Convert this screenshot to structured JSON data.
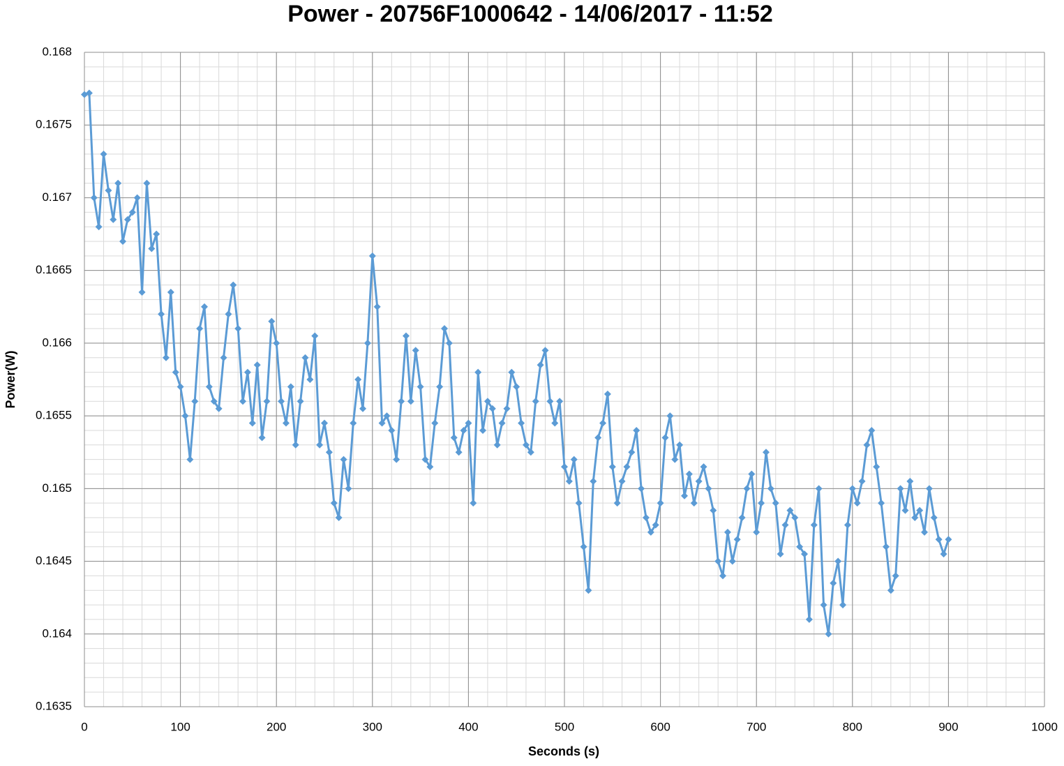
{
  "chart_data": {
    "type": "line",
    "title": "Power - 20756F1000642 - 14/06/2017 - 11:52",
    "x_label": "Seconds (s)",
    "y_label": "Power(W)",
    "xlim": [
      0,
      1000
    ],
    "xticks": [
      0,
      100,
      200,
      300,
      400,
      500,
      600,
      700,
      800,
      900,
      1000
    ],
    "ylim": [
      0.1635,
      0.168
    ],
    "yticks": [
      0.1635,
      0.164,
      0.1645,
      0.165,
      0.1655,
      0.166,
      0.1665,
      0.167,
      0.1675,
      0.168
    ],
    "grid": true,
    "xminor": 20,
    "yminor": 0.0001,
    "series": [
      {
        "name": "Power",
        "color": "#5b9bd5",
        "marker": "diamond",
        "x": [
          0,
          5,
          10,
          15,
          20,
          25,
          30,
          35,
          40,
          45,
          50,
          55,
          60,
          65,
          70,
          75,
          80,
          85,
          90,
          95,
          100,
          105,
          110,
          115,
          120,
          125,
          130,
          135,
          140,
          145,
          150,
          155,
          160,
          165,
          170,
          175,
          180,
          185,
          190,
          195,
          200,
          205,
          210,
          215,
          220,
          225,
          230,
          235,
          240,
          245,
          250,
          255,
          260,
          265,
          270,
          275,
          280,
          285,
          290,
          295,
          300,
          305,
          310,
          315,
          320,
          325,
          330,
          335,
          340,
          345,
          350,
          355,
          360,
          365,
          370,
          375,
          380,
          385,
          390,
          395,
          400,
          405,
          410,
          415,
          420,
          425,
          430,
          435,
          440,
          445,
          450,
          455,
          460,
          465,
          470,
          475,
          480,
          485,
          490,
          495,
          500,
          505,
          510,
          515,
          520,
          525,
          530,
          535,
          540,
          545,
          550,
          555,
          560,
          565,
          570,
          575,
          580,
          585,
          590,
          595,
          600,
          605,
          610,
          615,
          620,
          625,
          630,
          635,
          640,
          645,
          650,
          655,
          660,
          665,
          670,
          675,
          680,
          685,
          690,
          695,
          700,
          705,
          710,
          715,
          720,
          725,
          730,
          735,
          740,
          745,
          750,
          755,
          760,
          765,
          770,
          775,
          780,
          785,
          790,
          795,
          800,
          805,
          810,
          815,
          820,
          825,
          830,
          835,
          840,
          845,
          850,
          855,
          860,
          865,
          870,
          875,
          880,
          885,
          890,
          895,
          900
        ],
        "values": [
          0.16771,
          0.16772,
          0.167,
          0.1668,
          0.1673,
          0.16705,
          0.16685,
          0.1671,
          0.1667,
          0.16685,
          0.1669,
          0.167,
          0.16635,
          0.1671,
          0.16665,
          0.16675,
          0.1662,
          0.1659,
          0.16635,
          0.1658,
          0.1657,
          0.1655,
          0.1652,
          0.1656,
          0.1661,
          0.16625,
          0.1657,
          0.1656,
          0.16555,
          0.1659,
          0.1662,
          0.1664,
          0.1661,
          0.1656,
          0.1658,
          0.16545,
          0.16585,
          0.16535,
          0.1656,
          0.16615,
          0.166,
          0.1656,
          0.16545,
          0.1657,
          0.1653,
          0.1656,
          0.1659,
          0.16575,
          0.16605,
          0.1653,
          0.16545,
          0.16525,
          0.1649,
          0.1648,
          0.1652,
          0.165,
          0.16545,
          0.16575,
          0.16555,
          0.166,
          0.1666,
          0.16625,
          0.16545,
          0.1655,
          0.1654,
          0.1652,
          0.1656,
          0.16605,
          0.1656,
          0.16595,
          0.1657,
          0.1652,
          0.16515,
          0.16545,
          0.1657,
          0.1661,
          0.166,
          0.16535,
          0.16525,
          0.1654,
          0.16545,
          0.1649,
          0.1658,
          0.1654,
          0.1656,
          0.16555,
          0.1653,
          0.16545,
          0.16555,
          0.1658,
          0.1657,
          0.16545,
          0.1653,
          0.16525,
          0.1656,
          0.16585,
          0.16595,
          0.1656,
          0.16545,
          0.1656,
          0.16515,
          0.16505,
          0.1652,
          0.1649,
          0.1646,
          0.1643,
          0.16505,
          0.16535,
          0.16545,
          0.16565,
          0.16515,
          0.1649,
          0.16505,
          0.16515,
          0.16525,
          0.1654,
          0.165,
          0.1648,
          0.1647,
          0.16475,
          0.1649,
          0.16535,
          0.1655,
          0.1652,
          0.1653,
          0.16495,
          0.1651,
          0.1649,
          0.16505,
          0.16515,
          0.165,
          0.16485,
          0.1645,
          0.1644,
          0.1647,
          0.1645,
          0.16465,
          0.1648,
          0.165,
          0.1651,
          0.1647,
          0.1649,
          0.16525,
          0.165,
          0.1649,
          0.16455,
          0.16475,
          0.16485,
          0.1648,
          0.1646,
          0.16455,
          0.1641,
          0.16475,
          0.165,
          0.1642,
          0.164,
          0.16435,
          0.1645,
          0.1642,
          0.16475,
          0.165,
          0.1649,
          0.16505,
          0.1653,
          0.1654,
          0.16515,
          0.1649,
          0.1646,
          0.1643,
          0.1644,
          0.165,
          0.16485,
          0.16505,
          0.1648,
          0.16485,
          0.1647,
          0.165,
          0.1648,
          0.16465,
          0.16455,
          0.16465
        ]
      }
    ]
  }
}
